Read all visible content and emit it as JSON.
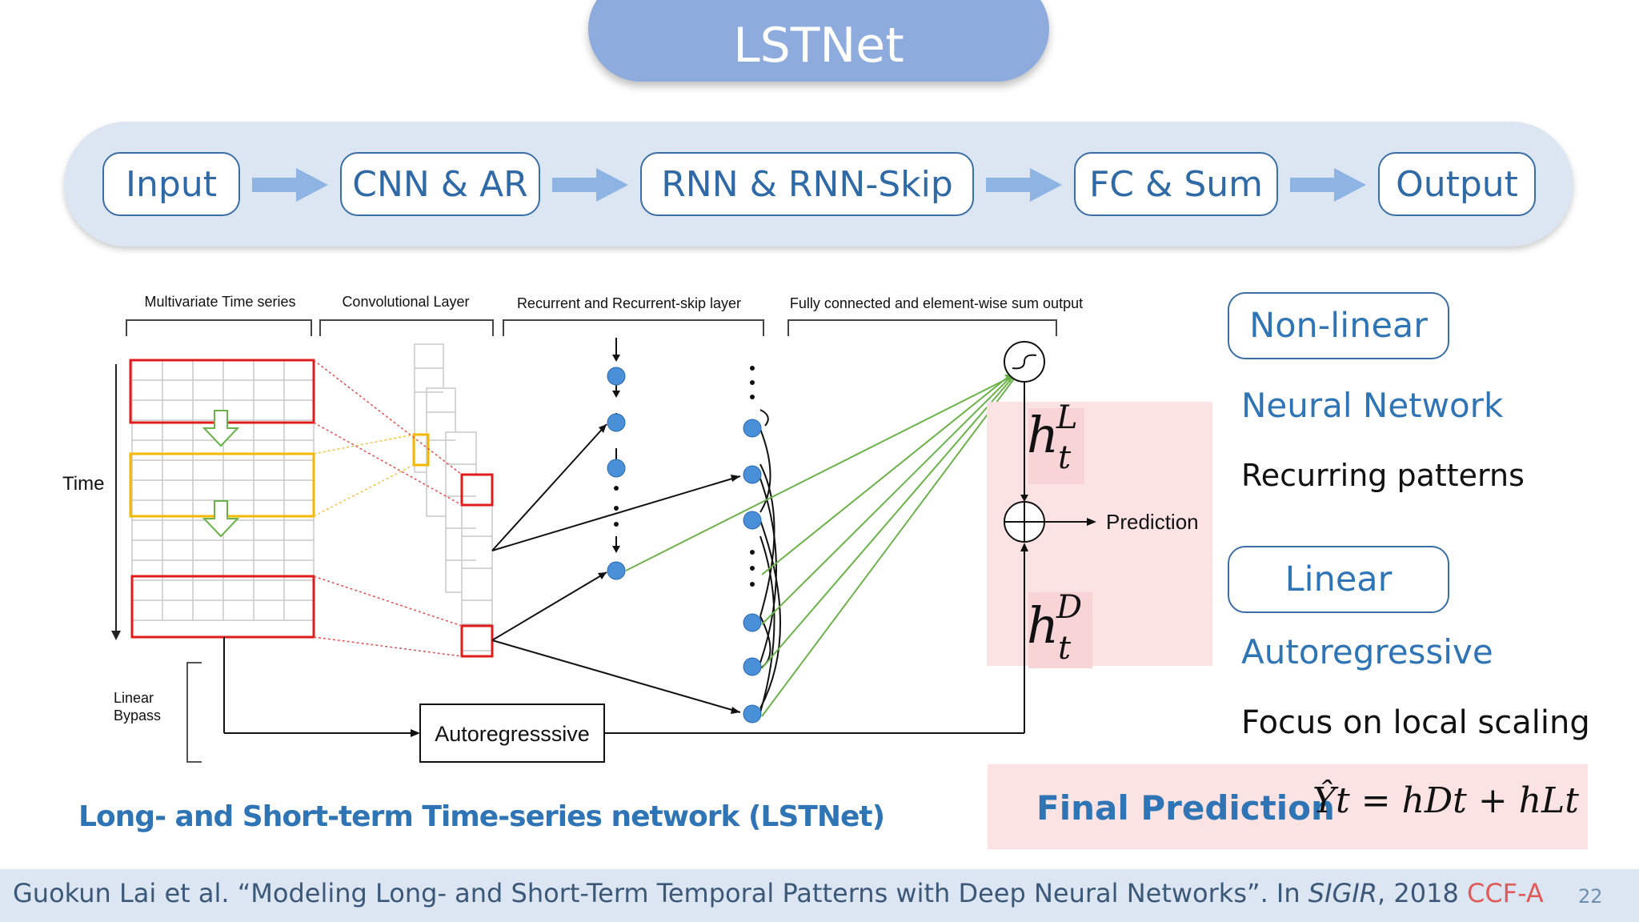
{
  "title": "LSTNet",
  "pipeline": [
    "Input",
    "CNN & AR",
    "RNN & RNN-Skip",
    "FC & Sum",
    "Output"
  ],
  "diagram": {
    "section_labels": [
      "Multivariate Time series",
      "Convolutional Layer",
      "Recurrent and Recurrent-skip layer",
      "Fully connected and element-wise sum output"
    ],
    "time_label": "Time",
    "linear_bypass": [
      "Linear",
      "Bypass"
    ],
    "autoregressive_box": "Autoregresssive",
    "prediction_label": "Prediction",
    "h_base": "h",
    "h_sub": "t",
    "h_sup_L": "L",
    "h_sup_D": "D"
  },
  "right_panel": {
    "nonlinear_box": "Non-linear",
    "nonlinear_title": "Neural Network",
    "nonlinear_desc": "Recurring patterns",
    "linear_box": "Linear",
    "linear_title": "Autoregressive",
    "linear_desc": "Focus on local scaling"
  },
  "final": {
    "label": "Final Prediction",
    "equation": "Ŷt = hDt + hLt"
  },
  "caption": "Long- and Short-term Time-series network (LSTNet)",
  "footer": {
    "citation_prefix": "Guokun Lai et al. “Modeling Long- and Short-Term Temporal Patterns with Deep Neural Networks”. In ",
    "venue": "SIGIR",
    "year": ", 2018 ",
    "rank": "CCF-A",
    "page": "22"
  }
}
